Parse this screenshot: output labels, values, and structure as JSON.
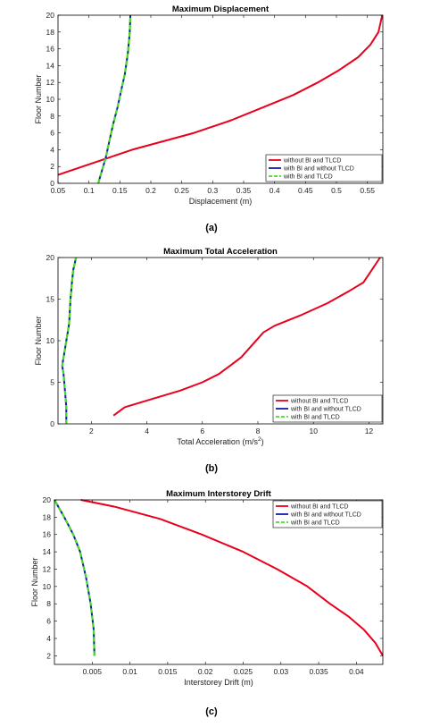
{
  "charts": [
    {
      "id": "a",
      "caption": "(a)",
      "chart_data": {
        "type": "line",
        "title": "Maximum Displacement",
        "xlabel": "Displacement (m)",
        "ylabel": "Floor Number",
        "xlim": [
          0.05,
          0.575
        ],
        "ylim": [
          0,
          20
        ],
        "xticks": [
          0.05,
          0.1,
          0.15,
          0.2,
          0.25,
          0.3,
          0.35,
          0.4,
          0.45,
          0.5,
          0.55
        ],
        "xticklabels": [
          "0.05",
          "0.1",
          "0.15",
          "0.2",
          "0.25",
          "0.3",
          "0.35",
          "0.4",
          "0.45",
          "0.5",
          "0.55"
        ],
        "yticks": [
          0,
          2,
          4,
          6,
          8,
          10,
          12,
          14,
          16,
          18,
          20
        ],
        "yticklabels": [
          "0",
          "2",
          "4",
          "6",
          "8",
          "10",
          "12",
          "14",
          "16",
          "18",
          "20"
        ],
        "legend_position": "bottom-right",
        "series": [
          {
            "name": "without BI and TLCD",
            "color": "#e8001c",
            "style": "solid",
            "x": [
              0.05,
              0.09,
              0.13,
              0.17,
              0.22,
              0.27,
              0.33,
              0.38,
              0.43,
              0.47,
              0.505,
              0.535,
              0.555,
              0.568,
              0.574
            ],
            "y": [
              1,
              2,
              3,
              4,
              5,
              6,
              7.5,
              9,
              10.5,
              12,
              13.5,
              15,
              16.5,
              18,
              20
            ]
          },
          {
            "name": "with BI and without TLCD",
            "color": "#1a1aa8",
            "style": "solid",
            "x": [
              0.115,
              0.121,
              0.127,
              0.133,
              0.139,
              0.146,
              0.152,
              0.158,
              0.163,
              0.166,
              0.167
            ],
            "y": [
              0,
              1.5,
              3,
              5,
              7,
              9,
              11,
              13,
              15.5,
              18,
              20
            ]
          },
          {
            "name": "with BI and TLCD",
            "color": "#44dd22",
            "style": "dashed",
            "x": [
              0.115,
              0.121,
              0.127,
              0.133,
              0.139,
              0.146,
              0.152,
              0.158,
              0.163,
              0.166,
              0.167
            ],
            "y": [
              0,
              1.5,
              3,
              5,
              7,
              9,
              11,
              13,
              15.5,
              18,
              20
            ]
          }
        ]
      }
    },
    {
      "id": "b",
      "caption": "(b)",
      "chart_data": {
        "type": "line",
        "title": "Maximum Total Acceleration",
        "xlabel": "Total Acceleration (m/s",
        "xlabel_sup": "2",
        "xlabel_end": ")",
        "ylabel": "Floor Number",
        "xlim": [
          0.8,
          12.5
        ],
        "ylim": [
          0,
          20
        ],
        "xticks": [
          2,
          4,
          6,
          8,
          10,
          12
        ],
        "xticklabels": [
          "2",
          "4",
          "6",
          "8",
          "10",
          "12"
        ],
        "yticks": [
          0,
          5,
          10,
          15,
          20
        ],
        "yticklabels": [
          "0",
          "5",
          "10",
          "15",
          "20"
        ],
        "legend_position": "bottom-right",
        "series": [
          {
            "name": "without BI and TLCD",
            "color": "#e8001c",
            "style": "solid",
            "x": [
              2.8,
              3.2,
              4.2,
              5.2,
              6.0,
              6.6,
              7.0,
              7.4,
              7.8,
              8.2,
              8.6,
              9.5,
              10.5,
              11.3,
              11.8,
              12.1,
              12.4
            ],
            "y": [
              1,
              2,
              3,
              4,
              5,
              6,
              7,
              8,
              9.5,
              11,
              11.8,
              13,
              14.5,
              16,
              17,
              18.5,
              20
            ]
          },
          {
            "name": "with BI and without TLCD",
            "color": "#1a1aa8",
            "style": "solid",
            "x": [
              1.1,
              1.1,
              1.05,
              1.0,
              0.95,
              1.05,
              1.2,
              1.25,
              1.3,
              1.35,
              1.45
            ],
            "y": [
              0,
              2,
              4,
              6,
              7,
              9,
              12,
              15,
              17,
              18.5,
              20
            ]
          },
          {
            "name": "with BI and TLCD",
            "color": "#44dd22",
            "style": "dashed",
            "x": [
              1.1,
              1.1,
              1.05,
              1.0,
              0.95,
              1.05,
              1.2,
              1.25,
              1.3,
              1.35,
              1.45
            ],
            "y": [
              0,
              2,
              4,
              6,
              7,
              9,
              12,
              15,
              17,
              18.5,
              20
            ]
          }
        ]
      }
    },
    {
      "id": "c",
      "caption": "(c)",
      "chart_data": {
        "type": "line",
        "title": "Maximum Interstorey Drift",
        "xlabel": "Interstorey Drift (m)",
        "ylabel": "Floor Number",
        "xlim": [
          0,
          0.0435
        ],
        "ylim": [
          1,
          20
        ],
        "xticks": [
          0.005,
          0.01,
          0.015,
          0.02,
          0.025,
          0.03,
          0.035,
          0.04
        ],
        "xticklabels": [
          "0.005",
          "0.01",
          "0.015",
          "0.02",
          "0.025",
          "0.03",
          "0.035",
          "0.04"
        ],
        "yticks": [
          2,
          4,
          6,
          8,
          10,
          12,
          14,
          16,
          18,
          20
        ],
        "yticklabels": [
          "2",
          "4",
          "6",
          "8",
          "10",
          "12",
          "14",
          "16",
          "18",
          "20"
        ],
        "legend_position": "top-right",
        "series": [
          {
            "name": "without BI and TLCD",
            "color": "#e8001c",
            "style": "solid",
            "x": [
              0.0435,
              0.0425,
              0.041,
              0.039,
              0.0365,
              0.0335,
              0.0295,
              0.025,
              0.0195,
              0.014,
              0.008,
              0.0035
            ],
            "y": [
              2,
              3.5,
              5,
              6.5,
              8,
              10,
              12,
              14,
              16,
              17.8,
              19.2,
              20
            ]
          },
          {
            "name": "with BI and without TLCD",
            "color": "#1a1aa8",
            "style": "solid",
            "x": [
              0.0053,
              0.0052,
              0.0048,
              0.0042,
              0.0034,
              0.0025,
              0.0013,
              0.0
            ],
            "y": [
              2,
              5,
              8,
              11,
              14,
              16,
              18,
              20
            ]
          },
          {
            "name": "with BI and TLCD",
            "color": "#44dd22",
            "style": "dashed",
            "x": [
              0.0053,
              0.0052,
              0.0048,
              0.0042,
              0.0034,
              0.0025,
              0.0013,
              0.0
            ],
            "y": [
              2,
              5,
              8,
              11,
              14,
              16,
              18,
              20
            ]
          }
        ]
      }
    }
  ]
}
